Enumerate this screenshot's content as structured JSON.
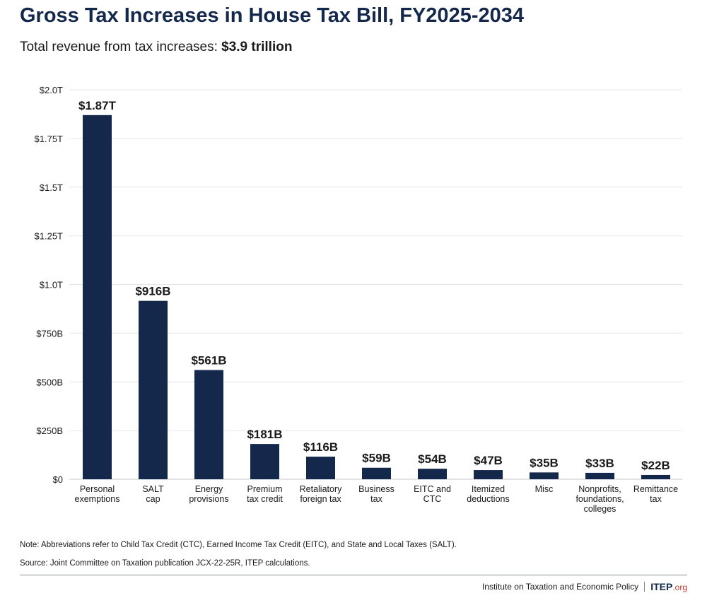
{
  "header": {
    "title": "Gross Tax Increases in House Tax Bill, FY2025-2034",
    "subtitle_prefix": "Total revenue from tax increases: ",
    "subtitle_value": "$3.9 trillion"
  },
  "chart_data": {
    "type": "bar",
    "categories": [
      [
        "Personal",
        "exemptions"
      ],
      [
        "SALT",
        "cap"
      ],
      [
        "Energy",
        "provisions"
      ],
      [
        "Premium",
        "tax credit"
      ],
      [
        "Retaliatory",
        "foreign tax"
      ],
      [
        "Business",
        "tax"
      ],
      [
        "EITC and",
        "CTC"
      ],
      [
        "Itemized",
        "deductions"
      ],
      [
        "Misc"
      ],
      [
        "Nonprofits,",
        "foundations,",
        "colleges"
      ],
      [
        "Remittance",
        "tax"
      ]
    ],
    "values": [
      1870,
      916,
      561,
      181,
      116,
      59,
      54,
      47,
      35,
      33,
      22
    ],
    "value_units": "billions of dollars",
    "data_labels": [
      "$1.87T",
      "$916B",
      "$561B",
      "$181B",
      "$116B",
      "$59B",
      "$54B",
      "$47B",
      "$35B",
      "$33B",
      "$22B"
    ],
    "ylim": [
      0,
      2000
    ],
    "yticks": [
      0,
      250,
      500,
      750,
      1000,
      1250,
      1500,
      1750,
      2000
    ],
    "ytick_labels": [
      "$0",
      "$250B",
      "$500B",
      "$750B",
      "$1.0T",
      "$1.25T",
      "$1.5T",
      "$1.75T",
      "$2.0T"
    ],
    "grid": true,
    "bar_color": "#14284b",
    "grid_color": "#e6e6e6"
  },
  "notes": {
    "note": "Note: Abbreviations refer to Child Tax Credit (CTC), Earned Income Tax Credit (EITC), and State and Local Taxes (SALT).",
    "source": "Source: Joint Committee on Taxation publication JCX-22-25R, ITEP calculations."
  },
  "footer": {
    "org_name": "Institute on Taxation and Economic Policy",
    "logo_main": "ITEP",
    "logo_suffix": ".org"
  }
}
